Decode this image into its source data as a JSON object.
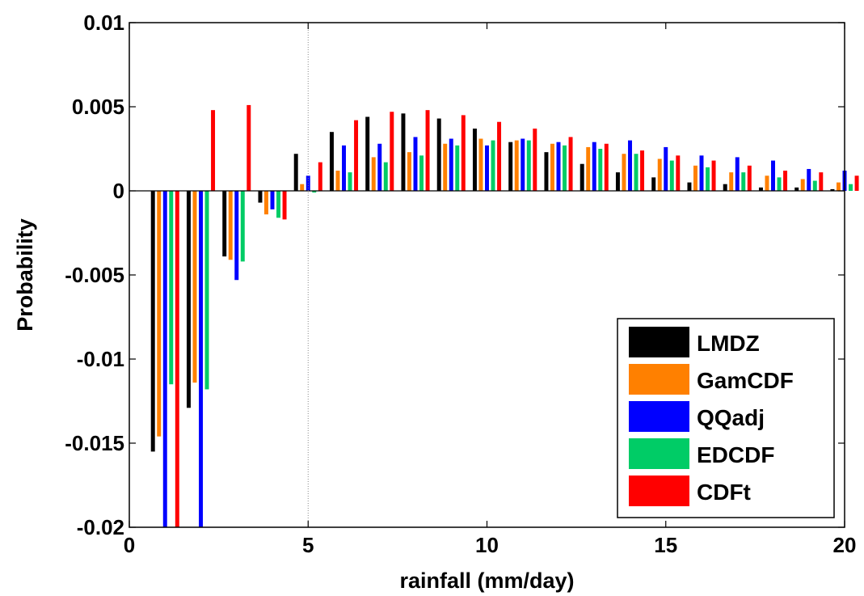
{
  "chart_data": {
    "type": "bar",
    "xlabel": "rainfall (mm/day)",
    "ylabel": "Probability",
    "xlim": [
      0,
      20
    ],
    "ylim": [
      -0.02,
      0.01
    ],
    "xticks": [
      0,
      5,
      10,
      15,
      20
    ],
    "xtick_labels": [
      "0",
      "5",
      "10",
      "15",
      "20"
    ],
    "yticks": [
      -0.02,
      -0.015,
      -0.01,
      -0.005,
      0,
      0.005,
      0.01
    ],
    "ytick_labels": [
      "-0.02",
      "-0.015",
      "-0.01",
      "-0.005",
      "0",
      "0.005",
      "0.01"
    ],
    "grid": false,
    "reference_line_x": 5,
    "legend_position": "bottom-right",
    "x": [
      1,
      2,
      3,
      4,
      5,
      6,
      7,
      8,
      9,
      10,
      11,
      12,
      13,
      14,
      15,
      16,
      17,
      18,
      19,
      20
    ],
    "series": [
      {
        "name": "LMDZ",
        "color": "#000000",
        "values": [
          -0.0155,
          -0.0129,
          -0.0039,
          -0.0007,
          0.0022,
          0.0035,
          0.0044,
          0.0046,
          0.0043,
          0.0037,
          0.0029,
          0.0023,
          0.0016,
          0.0011,
          0.0008,
          0.0005,
          0.0004,
          0.0002,
          0.0002,
          0.0001
        ]
      },
      {
        "name": "GamCDF",
        "color": "#FF8000",
        "values": [
          -0.0146,
          -0.0114,
          -0.0041,
          -0.0014,
          0.0004,
          0.0012,
          0.002,
          0.0023,
          0.0028,
          0.0031,
          0.003,
          0.0028,
          0.0026,
          0.0022,
          0.0019,
          0.0015,
          0.0011,
          0.0009,
          0.0007,
          0.0005
        ]
      },
      {
        "name": "QQadj",
        "color": "#0000FF",
        "values": [
          -0.0205,
          -0.0205,
          -0.0053,
          -0.0011,
          0.0009,
          0.0027,
          0.0028,
          0.0032,
          0.0031,
          0.0027,
          0.0031,
          0.0029,
          0.0029,
          0.003,
          0.0026,
          0.0021,
          0.002,
          0.0018,
          0.0013,
          0.0012
        ]
      },
      {
        "name": "EDCDF",
        "color": "#00CC66",
        "values": [
          -0.0115,
          -0.0118,
          -0.0042,
          -0.0016,
          -0.0001,
          0.0011,
          0.0017,
          0.0021,
          0.0027,
          0.003,
          0.003,
          0.0027,
          0.0025,
          0.0022,
          0.0018,
          0.0014,
          0.0011,
          0.0008,
          0.0006,
          0.0004
        ]
      },
      {
        "name": "CDFt",
        "color": "#FF0000",
        "values": [
          -0.0205,
          0.0048,
          0.0051,
          -0.0017,
          0.0017,
          0.0042,
          0.0047,
          0.0048,
          0.0045,
          0.0041,
          0.0037,
          0.0032,
          0.0028,
          0.0024,
          0.0021,
          0.0018,
          0.0015,
          0.0012,
          0.0011,
          0.0009
        ]
      }
    ]
  }
}
